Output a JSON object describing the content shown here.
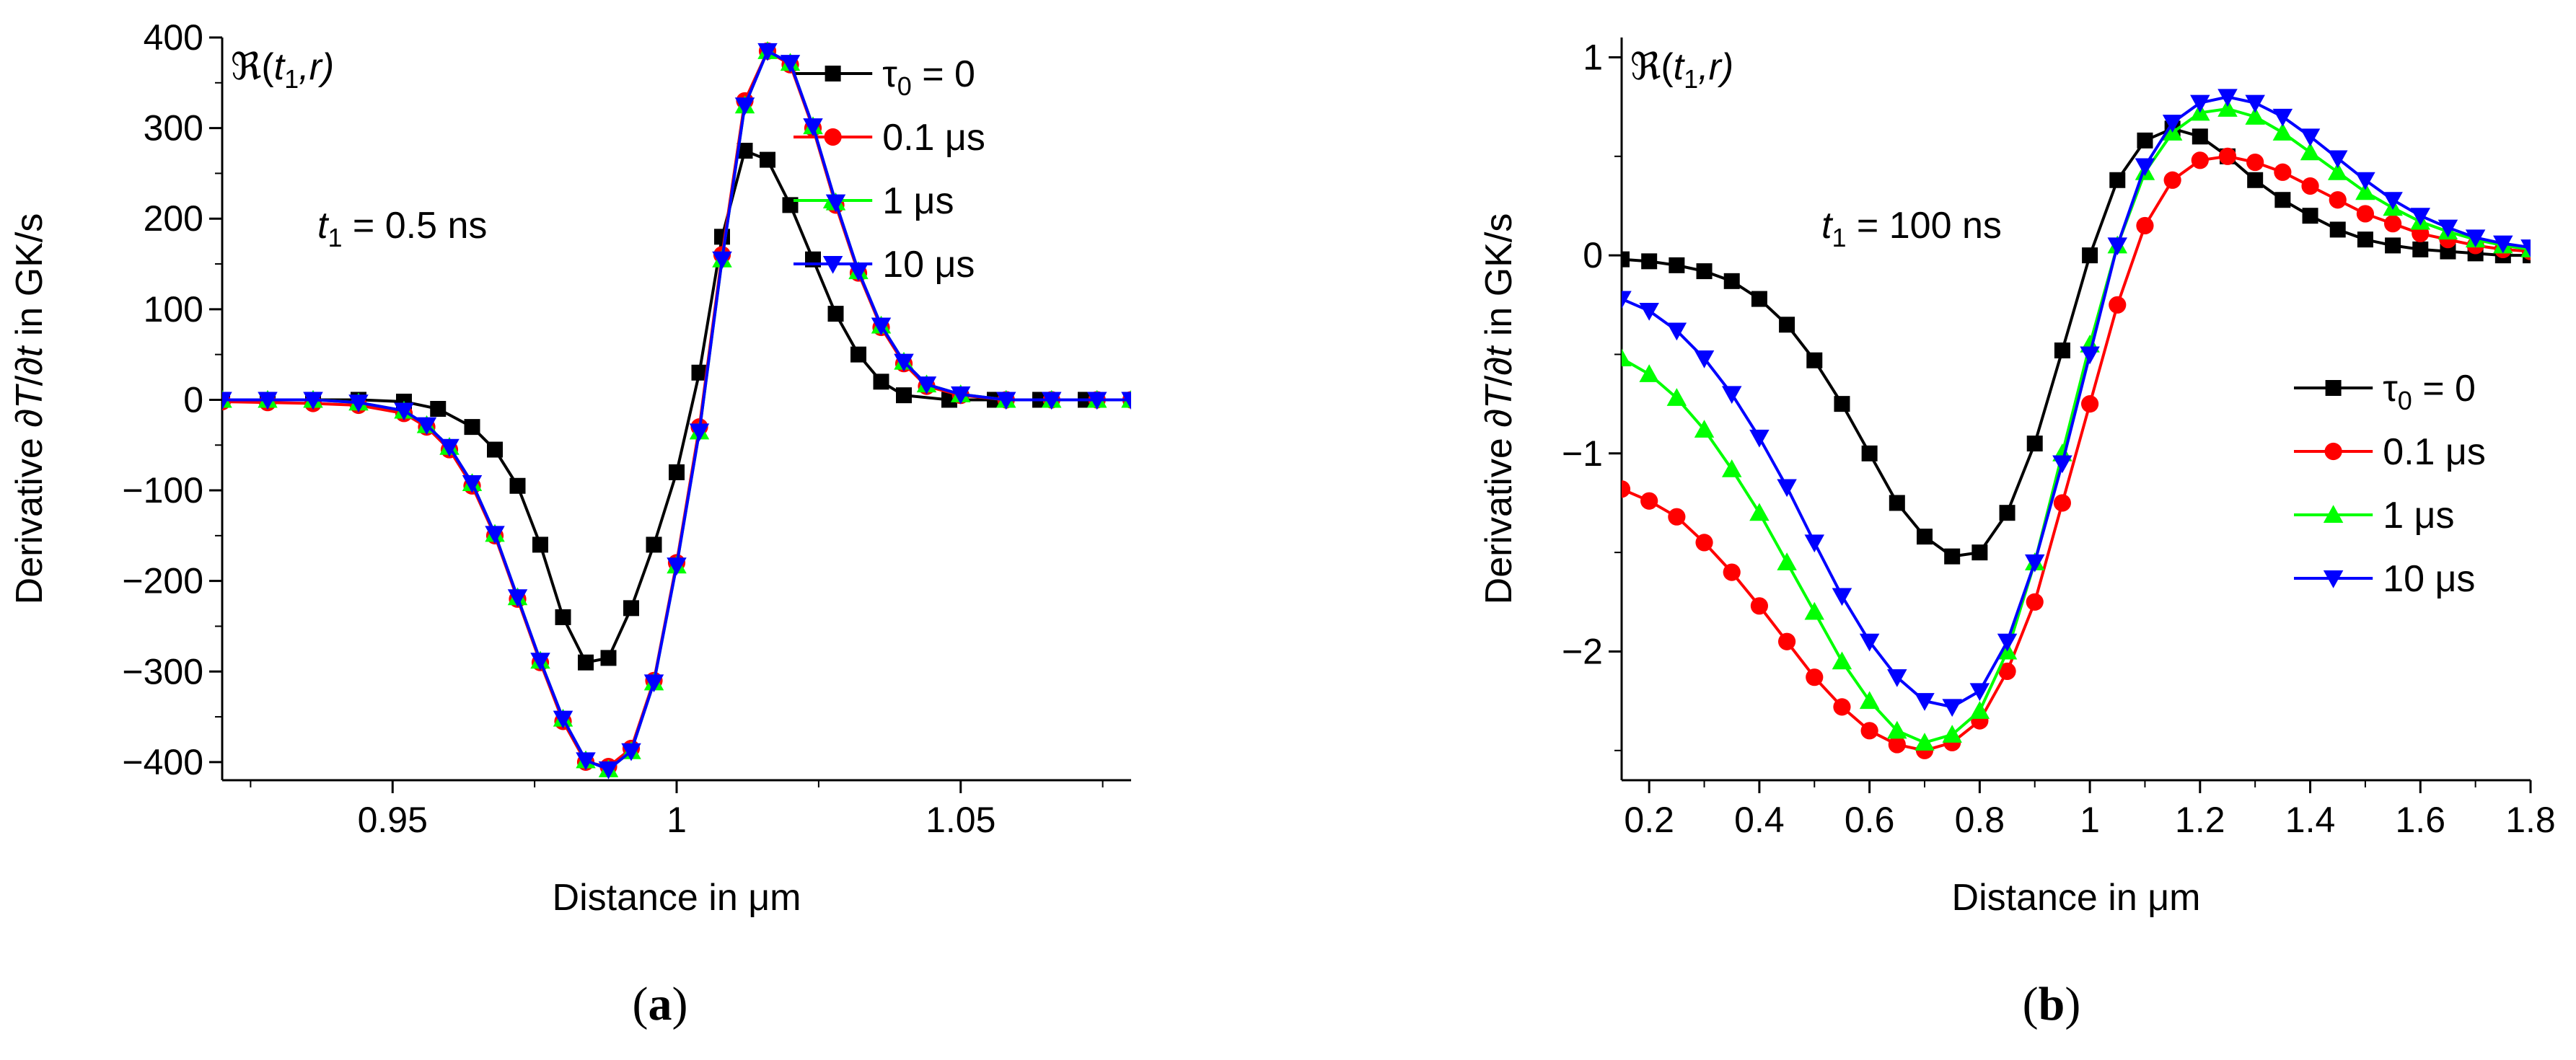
{
  "panels": {
    "a": {
      "paren_open": "(",
      "letter": "a",
      "paren_close": ")"
    },
    "b": {
      "paren_open": "(",
      "letter": "b",
      "paren_close": ")"
    }
  },
  "chart_data": [
    {
      "type": "line",
      "panel": "a",
      "corner_label": "ℜ(t1,r)",
      "corner_symbol": "ℜ",
      "corner_t": "t",
      "corner_sub": "1",
      "corner_rest": ",r)",
      "annotation": "t1 = 0.5 ns",
      "annotation_t": "t",
      "annotation_sub": "1",
      "annotation_rest": " = 0.5 ns",
      "xlabel": "Distance in μm",
      "ylabel": "Derivative ∂T/∂t in GK/s",
      "ylabel_pre": "Derivative ∂",
      "ylabel_T": "T",
      "ylabel_mid": "/∂",
      "ylabel_t": "t",
      "ylabel_post": " in GK/s",
      "xlim": [
        0.92,
        1.08
      ],
      "ylim": [
        -420,
        400
      ],
      "xticks": [
        0.95,
        1.0,
        1.05
      ],
      "xtick_labels": [
        "0.95",
        "1",
        "1.05"
      ],
      "yticks": [
        -400,
        -300,
        -200,
        -100,
        0,
        100,
        200,
        300,
        400
      ],
      "ytick_labels": [
        "−400",
        "−300",
        "−200",
        "−100",
        "0",
        "100",
        "200",
        "300",
        "400"
      ],
      "legend_position": "top-right",
      "series": [
        {
          "name": "τ0 = 0",
          "legend_pre": "τ",
          "legend_sub": "0",
          "legend_post": " = 0",
          "color": "#000000",
          "marker": "square",
          "x": [
            0.92,
            0.928,
            0.936,
            0.944,
            0.952,
            0.958,
            0.964,
            0.968,
            0.972,
            0.976,
            0.98,
            0.984,
            0.988,
            0.992,
            0.996,
            1.0,
            1.004,
            1.008,
            1.012,
            1.016,
            1.02,
            1.024,
            1.028,
            1.032,
            1.036,
            1.04,
            1.048,
            1.056,
            1.064,
            1.072,
            1.08
          ],
          "y": [
            0,
            0,
            0,
            0,
            -2,
            -10,
            -30,
            -55,
            -95,
            -160,
            -240,
            -290,
            -285,
            -230,
            -160,
            -80,
            30,
            180,
            275,
            265,
            215,
            155,
            95,
            50,
            20,
            5,
            0,
            0,
            0,
            0,
            0
          ]
        },
        {
          "name": "0.1 μs",
          "legend_pre": "0.1 μs",
          "legend_sub": "",
          "legend_post": "",
          "color": "#ff0000",
          "marker": "circle",
          "x": [
            0.92,
            0.928,
            0.936,
            0.944,
            0.952,
            0.956,
            0.96,
            0.964,
            0.968,
            0.972,
            0.976,
            0.98,
            0.984,
            0.988,
            0.992,
            0.996,
            1.0,
            1.004,
            1.008,
            1.012,
            1.016,
            1.02,
            1.024,
            1.028,
            1.032,
            1.036,
            1.04,
            1.044,
            1.05,
            1.058,
            1.066,
            1.074,
            1.08
          ],
          "y": [
            -2,
            -3,
            -4,
            -6,
            -15,
            -30,
            -55,
            -95,
            -150,
            -220,
            -290,
            -355,
            -400,
            -405,
            -385,
            -310,
            -180,
            -30,
            160,
            330,
            385,
            370,
            300,
            215,
            140,
            80,
            40,
            15,
            5,
            0,
            0,
            0,
            0
          ]
        },
        {
          "name": "1 μs",
          "legend_pre": "1 μs",
          "legend_sub": "",
          "legend_post": "",
          "color": "#00ff00",
          "marker": "triangle-up",
          "x": [
            0.92,
            0.928,
            0.936,
            0.944,
            0.952,
            0.956,
            0.96,
            0.964,
            0.968,
            0.972,
            0.976,
            0.98,
            0.984,
            0.988,
            0.992,
            0.996,
            1.0,
            1.004,
            1.008,
            1.012,
            1.016,
            1.02,
            1.024,
            1.028,
            1.032,
            1.036,
            1.04,
            1.044,
            1.05,
            1.058,
            1.066,
            1.074,
            1.08
          ],
          "y": [
            0,
            0,
            0,
            -3,
            -12,
            -28,
            -52,
            -92,
            -148,
            -218,
            -288,
            -352,
            -398,
            -408,
            -388,
            -312,
            -183,
            -35,
            155,
            325,
            385,
            372,
            302,
            218,
            142,
            82,
            42,
            17,
            6,
            0,
            0,
            0,
            0
          ]
        },
        {
          "name": "10 μs",
          "legend_pre": "10 μs",
          "legend_sub": "",
          "legend_post": "",
          "color": "#0000ff",
          "marker": "triangle-down",
          "x": [
            0.92,
            0.928,
            0.936,
            0.944,
            0.952,
            0.956,
            0.96,
            0.964,
            0.968,
            0.972,
            0.976,
            0.98,
            0.984,
            0.988,
            0.992,
            0.996,
            1.0,
            1.004,
            1.008,
            1.012,
            1.016,
            1.02,
            1.024,
            1.028,
            1.032,
            1.036,
            1.04,
            1.044,
            1.05,
            1.058,
            1.066,
            1.074,
            1.08
          ],
          "y": [
            0,
            0,
            0,
            -3,
            -12,
            -28,
            -52,
            -92,
            -148,
            -218,
            -288,
            -352,
            -398,
            -408,
            -388,
            -312,
            -183,
            -35,
            155,
            325,
            385,
            372,
            302,
            218,
            142,
            82,
            42,
            17,
            6,
            0,
            0,
            0,
            0
          ]
        }
      ]
    },
    {
      "type": "line",
      "panel": "b",
      "corner_label": "ℜ(t1,r)",
      "corner_symbol": "ℜ",
      "corner_t": "t",
      "corner_sub": "1",
      "corner_rest": ",r)",
      "annotation": "t1 = 100 ns",
      "annotation_t": "t",
      "annotation_sub": "1",
      "annotation_rest": " = 100 ns",
      "xlabel": "Distance in μm",
      "ylabel": "Derivative ∂T/∂t in GK/s",
      "ylabel_pre": "Derivative ∂",
      "ylabel_T": "T",
      "ylabel_mid": "/∂",
      "ylabel_t": "t",
      "ylabel_post": " in GK/s",
      "xlim": [
        0.15,
        1.8
      ],
      "ylim": [
        -2.65,
        1.1
      ],
      "xticks": [
        0.2,
        0.4,
        0.6,
        0.8,
        1.0,
        1.2,
        1.4,
        1.6,
        1.8
      ],
      "xtick_labels": [
        "0.2",
        "0.4",
        "0.6",
        "0.8",
        "1",
        "1.2",
        "1.4",
        "1.6",
        "1.8"
      ],
      "yticks": [
        -2,
        -1,
        0,
        1
      ],
      "ytick_labels": [
        "−2",
        "−1",
        "0",
        "1"
      ],
      "legend_position": "right",
      "series": [
        {
          "name": "τ0 = 0",
          "legend_pre": "τ",
          "legend_sub": "0",
          "legend_post": " = 0",
          "color": "#000000",
          "marker": "square",
          "x": [
            0.15,
            0.2,
            0.25,
            0.3,
            0.35,
            0.4,
            0.45,
            0.5,
            0.55,
            0.6,
            0.65,
            0.7,
            0.75,
            0.8,
            0.85,
            0.9,
            0.95,
            1.0,
            1.05,
            1.1,
            1.15,
            1.2,
            1.25,
            1.3,
            1.35,
            1.4,
            1.45,
            1.5,
            1.55,
            1.6,
            1.65,
            1.7,
            1.75,
            1.8
          ],
          "y": [
            -0.02,
            -0.03,
            -0.05,
            -0.08,
            -0.13,
            -0.22,
            -0.35,
            -0.53,
            -0.75,
            -1.0,
            -1.25,
            -1.42,
            -1.52,
            -1.5,
            -1.3,
            -0.95,
            -0.48,
            0.0,
            0.38,
            0.58,
            0.64,
            0.6,
            0.5,
            0.38,
            0.28,
            0.2,
            0.13,
            0.08,
            0.05,
            0.03,
            0.02,
            0.01,
            0.0,
            0.0
          ]
        },
        {
          "name": "0.1 μs",
          "legend_pre": "0.1 μs",
          "legend_sub": "",
          "legend_post": "",
          "color": "#ff0000",
          "marker": "circle",
          "x": [
            0.15,
            0.2,
            0.25,
            0.3,
            0.35,
            0.4,
            0.45,
            0.5,
            0.55,
            0.6,
            0.65,
            0.7,
            0.75,
            0.8,
            0.85,
            0.9,
            0.95,
            1.0,
            1.05,
            1.1,
            1.15,
            1.2,
            1.25,
            1.3,
            1.35,
            1.4,
            1.45,
            1.5,
            1.55,
            1.6,
            1.65,
            1.7,
            1.75,
            1.8
          ],
          "y": [
            -1.18,
            -1.24,
            -1.32,
            -1.45,
            -1.6,
            -1.77,
            -1.95,
            -2.13,
            -2.28,
            -2.4,
            -2.47,
            -2.5,
            -2.46,
            -2.35,
            -2.1,
            -1.75,
            -1.25,
            -0.75,
            -0.25,
            0.15,
            0.38,
            0.48,
            0.5,
            0.47,
            0.42,
            0.35,
            0.28,
            0.21,
            0.16,
            0.11,
            0.08,
            0.05,
            0.03,
            0.02
          ]
        },
        {
          "name": "1 μs",
          "legend_pre": "1 μs",
          "legend_sub": "",
          "legend_post": "",
          "color": "#00ff00",
          "marker": "triangle-up",
          "x": [
            0.15,
            0.2,
            0.25,
            0.3,
            0.35,
            0.4,
            0.45,
            0.5,
            0.55,
            0.6,
            0.65,
            0.7,
            0.75,
            0.8,
            0.85,
            0.9,
            0.95,
            1.0,
            1.05,
            1.1,
            1.15,
            1.2,
            1.25,
            1.3,
            1.35,
            1.4,
            1.45,
            1.5,
            1.55,
            1.6,
            1.65,
            1.7,
            1.75,
            1.8
          ],
          "y": [
            -0.52,
            -0.6,
            -0.72,
            -0.88,
            -1.08,
            -1.3,
            -1.55,
            -1.8,
            -2.05,
            -2.25,
            -2.4,
            -2.46,
            -2.42,
            -2.3,
            -2.0,
            -1.55,
            -1.0,
            -0.45,
            0.05,
            0.42,
            0.62,
            0.72,
            0.74,
            0.7,
            0.62,
            0.52,
            0.42,
            0.32,
            0.24,
            0.17,
            0.12,
            0.08,
            0.05,
            0.03
          ]
        },
        {
          "name": "10 μs",
          "legend_pre": "10 μs",
          "legend_sub": "",
          "legend_post": "",
          "color": "#0000ff",
          "marker": "triangle-down",
          "x": [
            0.15,
            0.2,
            0.25,
            0.3,
            0.35,
            0.4,
            0.45,
            0.5,
            0.55,
            0.6,
            0.65,
            0.7,
            0.75,
            0.8,
            0.85,
            0.9,
            0.95,
            1.0,
            1.05,
            1.1,
            1.15,
            1.2,
            1.25,
            1.3,
            1.35,
            1.4,
            1.45,
            1.5,
            1.55,
            1.6,
            1.65,
            1.7,
            1.75,
            1.8
          ],
          "y": [
            -0.22,
            -0.28,
            -0.38,
            -0.52,
            -0.7,
            -0.92,
            -1.17,
            -1.45,
            -1.72,
            -1.95,
            -2.13,
            -2.25,
            -2.28,
            -2.2,
            -1.95,
            -1.55,
            -1.05,
            -0.5,
            0.05,
            0.45,
            0.67,
            0.77,
            0.8,
            0.77,
            0.7,
            0.6,
            0.49,
            0.38,
            0.28,
            0.2,
            0.14,
            0.09,
            0.06,
            0.04
          ]
        }
      ]
    }
  ]
}
